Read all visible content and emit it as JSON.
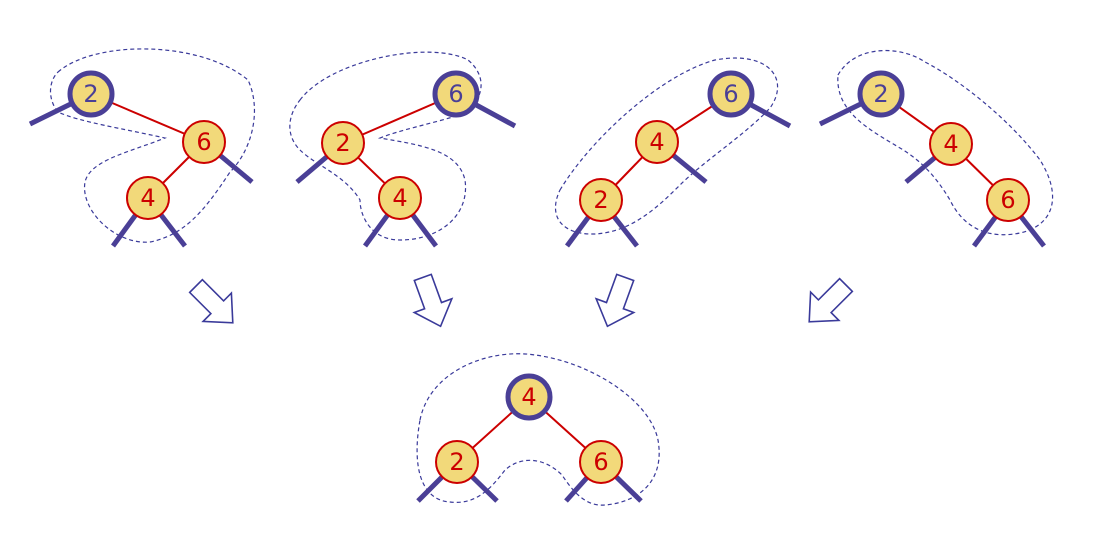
{
  "colors": {
    "node_fill": "#f2d97a",
    "red_node_stroke": "#cc0000",
    "black_node_stroke": "#4a3f96",
    "red_label": "#cc0000",
    "black_label": "#4a3f96",
    "red_edge": "#cc0000",
    "subtree_edge": "#4a3f96",
    "dashed_outline": "#3a3a9a"
  },
  "trees": [
    {
      "nodes": [
        {
          "label": "2",
          "color": "black"
        },
        {
          "label": "6",
          "color": "red"
        },
        {
          "label": "4",
          "color": "red"
        }
      ]
    },
    {
      "nodes": [
        {
          "label": "6",
          "color": "black"
        },
        {
          "label": "2",
          "color": "red"
        },
        {
          "label": "4",
          "color": "red"
        }
      ]
    },
    {
      "nodes": [
        {
          "label": "6",
          "color": "black"
        },
        {
          "label": "4",
          "color": "red"
        },
        {
          "label": "2",
          "color": "red"
        }
      ]
    },
    {
      "nodes": [
        {
          "label": "2",
          "color": "black"
        },
        {
          "label": "4",
          "color": "red"
        },
        {
          "label": "6",
          "color": "red"
        }
      ]
    }
  ],
  "result": {
    "nodes": [
      {
        "label": "4",
        "color": "black"
      },
      {
        "label": "2",
        "color": "red"
      },
      {
        "label": "6",
        "color": "red"
      }
    ]
  },
  "arrow_icon": "hollow-arrow-icon"
}
